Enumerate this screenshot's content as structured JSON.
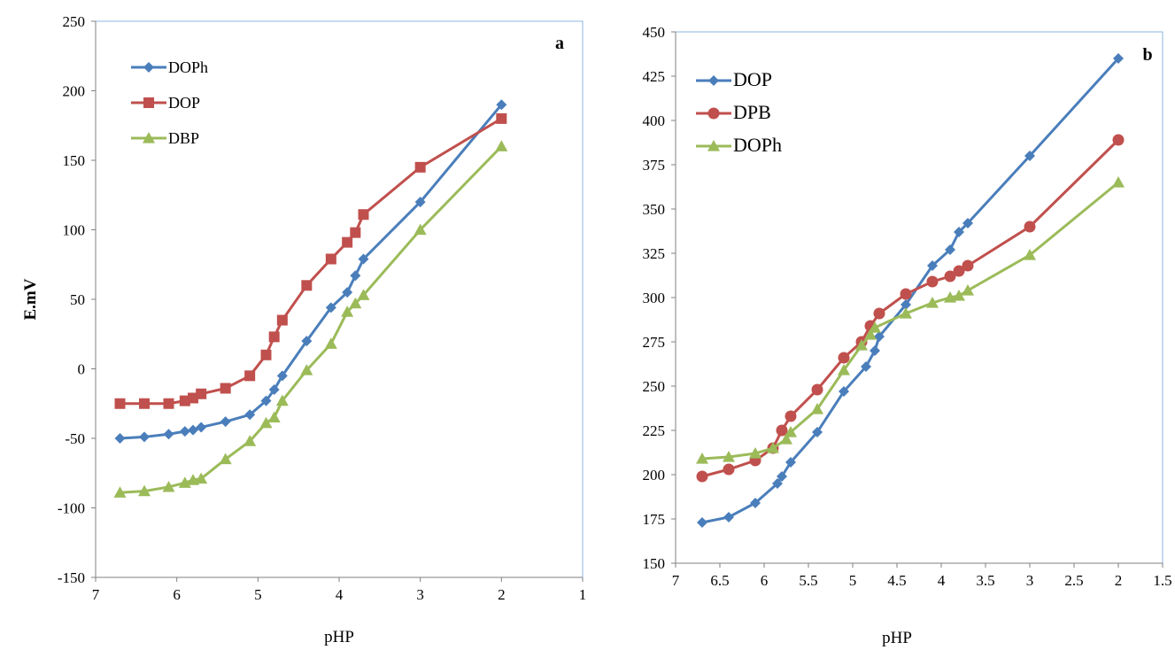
{
  "chart_data": [
    {
      "panel_label": "a",
      "type": "line",
      "xlabel": "pHP",
      "ylabel": "E.mV",
      "xlim": [
        7,
        1
      ],
      "x_reversed": true,
      "ylim": [
        -150,
        250
      ],
      "xticks": [
        7,
        6,
        5,
        4,
        3,
        2,
        1
      ],
      "yticks": [
        -150,
        -100,
        -50,
        0,
        50,
        100,
        150,
        200,
        250
      ],
      "grid": false,
      "legend_position": "top-left",
      "series": [
        {
          "name": "DOPh",
          "marker": "diamond",
          "color": "#4a7ebb",
          "x": [
            6.7,
            6.4,
            6.1,
            5.9,
            5.8,
            5.7,
            5.4,
            5.1,
            4.9,
            4.8,
            4.7,
            4.4,
            4.1,
            3.9,
            3.8,
            3.7,
            3.0,
            2.0
          ],
          "y": [
            -50,
            -49,
            -47,
            -45,
            -44,
            -42,
            -38,
            -33,
            -23,
            -15,
            -5,
            20,
            44,
            55,
            67,
            79,
            120,
            190
          ]
        },
        {
          "name": "DOP",
          "marker": "square",
          "color": "#c0504d",
          "x": [
            6.7,
            6.4,
            6.1,
            5.9,
            5.8,
            5.7,
            5.4,
            5.1,
            4.9,
            4.8,
            4.7,
            4.4,
            4.1,
            3.9,
            3.8,
            3.7,
            3.0,
            2.0
          ],
          "y": [
            -25,
            -25,
            -25,
            -23,
            -21,
            -18,
            -14,
            -5,
            10,
            23,
            35,
            60,
            79,
            91,
            98,
            111,
            145,
            180
          ]
        },
        {
          "name": "DBP",
          "marker": "triangle",
          "color": "#9bbb59",
          "x": [
            6.7,
            6.4,
            6.1,
            5.9,
            5.8,
            5.7,
            5.4,
            5.1,
            4.9,
            4.8,
            4.7,
            4.4,
            4.1,
            3.9,
            3.8,
            3.7,
            3.0,
            2.0
          ],
          "y": [
            -89,
            -88,
            -85,
            -82,
            -80,
            -79,
            -65,
            -52,
            -39,
            -35,
            -23,
            -1,
            18,
            41,
            47,
            53,
            100,
            160
          ]
        }
      ]
    },
    {
      "panel_label": "b",
      "type": "line",
      "xlabel": "pHP",
      "ylabel": "",
      "xlim": [
        7,
        1.5
      ],
      "x_reversed": true,
      "ylim": [
        150,
        450
      ],
      "xticks": [
        7,
        6.5,
        6,
        5.5,
        5,
        4.5,
        4,
        3.5,
        3,
        2.5,
        2,
        1.5
      ],
      "yticks": [
        150,
        175,
        200,
        225,
        250,
        275,
        300,
        325,
        350,
        375,
        400,
        425,
        450
      ],
      "grid": false,
      "legend_position": "top-left",
      "series": [
        {
          "name": "DOP",
          "marker": "diamond",
          "color": "#4a7ebb",
          "x": [
            6.7,
            6.4,
            6.1,
            5.85,
            5.8,
            5.7,
            5.4,
            5.1,
            4.85,
            4.75,
            4.7,
            4.4,
            4.1,
            3.9,
            3.8,
            3.7,
            3.0,
            2.0
          ],
          "y": [
            173,
            176,
            184,
            195,
            199,
            207,
            224,
            247,
            261,
            270,
            278,
            296,
            318,
            327,
            337,
            342,
            380,
            435
          ]
        },
        {
          "name": "DPB",
          "marker": "circle",
          "color": "#c0504d",
          "x": [
            6.7,
            6.4,
            6.1,
            5.9,
            5.8,
            5.7,
            5.4,
            5.1,
            4.9,
            4.8,
            4.7,
            4.4,
            4.1,
            3.9,
            3.8,
            3.7,
            3.0,
            2.0
          ],
          "y": [
            199,
            203,
            208,
            215,
            225,
            233,
            248,
            266,
            275,
            284,
            291,
            302,
            309,
            312,
            315,
            318,
            340,
            389
          ]
        },
        {
          "name": "DOPh",
          "marker": "triangle",
          "color": "#9bbb59",
          "x": [
            6.7,
            6.4,
            6.1,
            5.9,
            5.75,
            5.7,
            5.4,
            5.1,
            4.9,
            4.8,
            4.75,
            4.4,
            4.1,
            3.9,
            3.8,
            3.7,
            3.0,
            2.0
          ],
          "y": [
            209,
            210,
            212,
            215,
            220,
            224,
            237,
            259,
            273,
            279,
            283,
            291,
            297,
            300,
            301,
            304,
            324,
            365
          ]
        }
      ]
    }
  ]
}
